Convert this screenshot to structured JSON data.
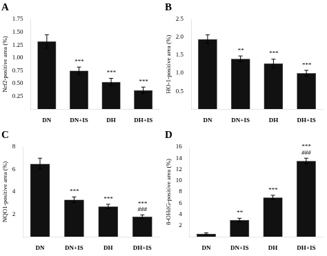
{
  "chart_data": [
    {
      "type": "bar",
      "title": "A",
      "ylabel": "Nrf2-positive area (%)",
      "categories": [
        "DN",
        "DN+IS",
        "DH",
        "DH+IS"
      ],
      "values": [
        1.32,
        0.75,
        0.53,
        0.37
      ],
      "errors": [
        0.13,
        0.07,
        0.07,
        0.06
      ],
      "color": "#111111",
      "ylim": [
        0,
        1.75
      ],
      "yticks": [
        {
          "value": 0,
          "label": ""
        },
        0.25,
        {
          "value": 0.5,
          "label": "0.50"
        },
        0.75,
        {
          "value": 1.0,
          "label": "1.00"
        },
        1.25,
        {
          "value": 1.5,
          "label": "1.50"
        },
        1.75
      ],
      "annotations": [
        null,
        "***",
        "***",
        "***"
      ],
      "annotations2": [
        null,
        null,
        null,
        null
      ],
      "grid": false
    },
    {
      "type": "bar",
      "title": "B",
      "ylabel": "HO-1-positive area (%)",
      "categories": [
        "DN",
        "DN+IS",
        "DH",
        "DH+IS"
      ],
      "values": [
        1.95,
        1.4,
        1.27,
        1.0
      ],
      "errors": [
        0.12,
        0.08,
        0.12,
        0.08
      ],
      "color": "#111111",
      "ylim": [
        0,
        2.5
      ],
      "yticks": [
        {
          "value": 0,
          "label": ""
        },
        0.5,
        {
          "value": 1.0,
          "label": "1.0"
        },
        1.5,
        {
          "value": 2.0,
          "label": "2.0"
        },
        2.5
      ],
      "annotations": [
        null,
        "**",
        "***",
        "***"
      ],
      "annotations2": [
        null,
        null,
        null,
        null
      ],
      "grid": false
    },
    {
      "type": "bar",
      "title": "C",
      "ylabel": "NQO1-positive area (%)",
      "categories": [
        "DN",
        "DN+IS",
        "DH",
        "DH+IS"
      ],
      "values": [
        6.5,
        3.3,
        2.7,
        1.8
      ],
      "errors": [
        0.5,
        0.25,
        0.2,
        0.15
      ],
      "color": "#111111",
      "ylim": [
        0,
        8
      ],
      "yticks": [
        {
          "value": 0,
          "label": ""
        },
        2,
        4,
        6,
        8
      ],
      "annotations": [
        null,
        "***",
        "***",
        "***"
      ],
      "annotations2": [
        null,
        null,
        null,
        "###"
      ],
      "grid": false
    },
    {
      "type": "bar",
      "title": "D",
      "ylabel": "8-OHdG-positive area (%)",
      "categories": [
        "DN",
        "DN+IS",
        "DH",
        "DH+IS"
      ],
      "values": [
        0.55,
        3.0,
        7.0,
        13.5
      ],
      "errors": [
        0.15,
        0.3,
        0.4,
        0.5
      ],
      "color": "#111111",
      "ylim": [
        0,
        16
      ],
      "yticks": [
        {
          "value": 0,
          "label": ""
        },
        2,
        4,
        6,
        8,
        10,
        12,
        14,
        16
      ],
      "annotations": [
        null,
        "**",
        "***",
        "***"
      ],
      "annotations2": [
        null,
        null,
        null,
        "###"
      ],
      "grid": false
    }
  ]
}
